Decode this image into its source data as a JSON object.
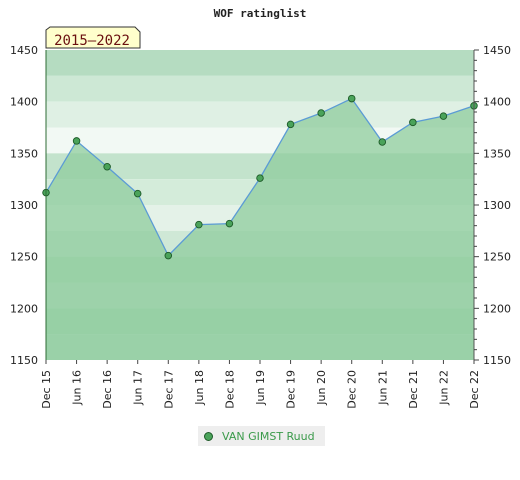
{
  "chart_data": {
    "type": "area",
    "title": "WOF ratinglist",
    "period_badge": "2015–2022",
    "x": [
      "Dec 15",
      "Jun 16",
      "Dec 16",
      "Jun 17",
      "Dec 17",
      "Jun 18",
      "Dec 18",
      "Jun 19",
      "Dec 19",
      "Jun 20",
      "Dec 20",
      "Jun 21",
      "Dec 21",
      "Jun 22",
      "Dec 22"
    ],
    "series": [
      {
        "name": "VAN GIMST Ruud",
        "values": [
          1312,
          1362,
          1337,
          1311,
          1251,
          1281,
          1282,
          1326,
          1378,
          1389,
          1403,
          1361,
          1380,
          1386,
          1396
        ]
      }
    ],
    "ylim": [
      1150,
      1450
    ],
    "yticks": [
      1150,
      1200,
      1250,
      1300,
      1350,
      1400,
      1450
    ],
    "y_axis_side": "both",
    "legend_position": "bottom-center",
    "colors": {
      "line": "#5b9bd5",
      "area_fill": "#8fcc9d",
      "marker_fill": "#4aa35a",
      "badge_bg": "#ffffcc",
      "badge_text": "#6b1010",
      "legend_text": "#3a9a4a"
    }
  }
}
